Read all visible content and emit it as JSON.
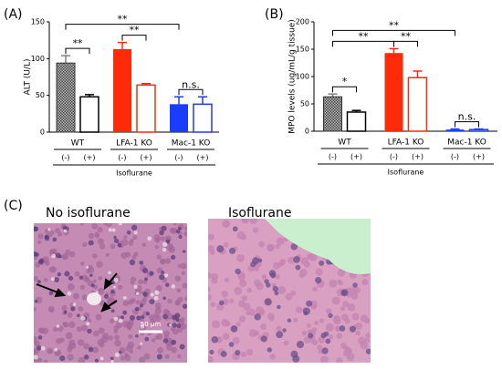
{
  "figure": {
    "panels": [
      "(A)",
      "(B)",
      "(C)"
    ],
    "micrographs": [
      {
        "title": "No isoflurane",
        "scale_bar": "50 μm"
      },
      {
        "title": "Isoflurane"
      }
    ]
  },
  "chart_data": [
    {
      "type": "bar",
      "y_label": "ALT (U/L)",
      "x_label": "Isoflurane",
      "categories": [
        "WT",
        "LFA-1 KO",
        "Mac-1 KO"
      ],
      "series": [
        {
          "name": "(-)",
          "values": [
            94,
            113,
            38
          ],
          "errors": [
            10,
            9,
            10
          ],
          "colors": [
            "#808080",
            "#ff2a0a",
            "#1a3cff"
          ],
          "fills": [
            "checker",
            "solid",
            "solid"
          ]
        },
        {
          "name": "(+)",
          "values": [
            48,
            64,
            38
          ],
          "errors": [
            3,
            2,
            10
          ],
          "colors": [
            "#000000",
            "#ff2a0a",
            "#1a3cff"
          ],
          "fills": [
            "none",
            "none",
            "none"
          ]
        }
      ],
      "ylim": [
        0,
        150
      ],
      "yticks": [
        0,
        50,
        100,
        150
      ],
      "annotations": [
        "**",
        "**",
        "n.s.",
        "**"
      ]
    },
    {
      "type": "bar",
      "y_label": "MPO levels (ug/mL/g tissue)",
      "x_label": "Isoflurane",
      "categories": [
        "WT",
        "LFA-1 KO",
        "Mac-1 KO"
      ],
      "series": [
        {
          "name": "(-)",
          "values": [
            63,
            143,
            3
          ],
          "errors": [
            5,
            8,
            1
          ],
          "colors": [
            "#808080",
            "#ff2a0a",
            "#1a3cff"
          ],
          "fills": [
            "checker",
            "solid",
            "solid"
          ]
        },
        {
          "name": "(+)",
          "values": [
            35,
            98,
            3
          ],
          "errors": [
            3,
            12,
            1
          ],
          "colors": [
            "#000000",
            "#ff2a0a",
            "#1a3cff"
          ],
          "fills": [
            "none",
            "none",
            "none"
          ]
        }
      ],
      "ylim": [
        0,
        200
      ],
      "yticks": [
        0,
        50,
        100,
        150,
        200
      ],
      "annotations": [
        "*",
        "**",
        "n.s.",
        "**",
        "**"
      ]
    }
  ]
}
